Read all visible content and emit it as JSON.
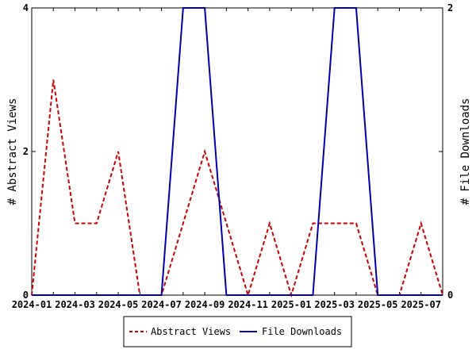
{
  "chart_data": {
    "type": "line",
    "x": [
      "2024-01",
      "2024-02",
      "2024-03",
      "2024-04",
      "2024-05",
      "2024-06",
      "2024-07",
      "2024-08",
      "2024-09",
      "2024-10",
      "2024-11",
      "2024-12",
      "2025-01",
      "2025-02",
      "2025-03",
      "2025-04",
      "2025-05",
      "2025-06",
      "2025-07",
      "2025-08"
    ],
    "x_tick_labels": [
      "2024-01",
      "2024-03",
      "2024-05",
      "2024-07",
      "2024-09",
      "2024-11",
      "2025-01",
      "2025-03",
      "2025-05",
      "2025-07"
    ],
    "series": [
      {
        "name": "Abstract Views",
        "axis": "left",
        "color": "#cc0000",
        "style": "dashed",
        "values": [
          0,
          3,
          1,
          1,
          2,
          0,
          0,
          1,
          2,
          1,
          0,
          1,
          0,
          1,
          1,
          1,
          0,
          0,
          1,
          0
        ]
      },
      {
        "name": "File Downloads",
        "axis": "right",
        "color": "#0000aa",
        "style": "solid",
        "values": [
          0,
          0,
          0,
          0,
          0,
          0,
          0,
          2,
          2,
          0,
          0,
          0,
          0,
          0,
          2,
          2,
          0,
          0,
          0,
          0
        ]
      }
    ],
    "ylabel_left": "# Abstract Views",
    "ylabel_right": "# File Downloads",
    "ylim_left": [
      0,
      4
    ],
    "ylim_right": [
      0,
      2
    ],
    "y_ticks_left": [
      "0",
      "2",
      "4"
    ],
    "y_ticks_right": [
      "0",
      "1",
      "2"
    ],
    "grid": false,
    "legend_position": "bottom-center"
  }
}
